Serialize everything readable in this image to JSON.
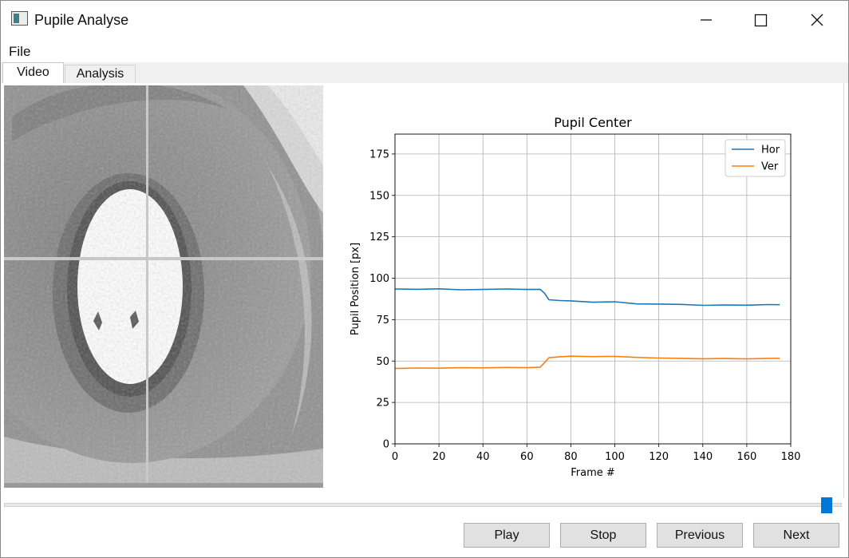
{
  "window": {
    "title": "Pupile Analyse"
  },
  "menu": {
    "file": "File"
  },
  "tabs": [
    {
      "label": "Video",
      "active": true
    },
    {
      "label": "Analysis",
      "active": false
    }
  ],
  "buttons": {
    "play": "Play",
    "stop": "Stop",
    "previous": "Previous",
    "next": "Next"
  },
  "slider": {
    "value_fraction": 0.99
  },
  "colors": {
    "accent": "#0078d7",
    "hor": "#1f77b4",
    "ver": "#ff7f0e"
  },
  "chart_data": {
    "type": "line",
    "title": "Pupil Center",
    "xlabel": "Frame #",
    "ylabel": "Pupil Position [px]",
    "xlim": [
      0,
      180
    ],
    "ylim": [
      0,
      187
    ],
    "xticks": [
      0,
      20,
      40,
      60,
      80,
      100,
      120,
      140,
      160,
      180
    ],
    "yticks": [
      0,
      25,
      50,
      75,
      100,
      125,
      150,
      175
    ],
    "grid": true,
    "legend": "top-right",
    "series": [
      {
        "name": "Hor",
        "x": [
          0,
          10,
          20,
          30,
          40,
          50,
          60,
          66,
          68,
          70,
          75,
          80,
          90,
          100,
          110,
          120,
          130,
          140,
          150,
          160,
          170,
          175
        ],
        "values": [
          93.5,
          93.3,
          93.6,
          93,
          93.2,
          93.5,
          93.2,
          93.3,
          91,
          87,
          86.5,
          86.3,
          85.5,
          85.8,
          84.5,
          84.4,
          84.2,
          83.6,
          83.8,
          83.7,
          84.1,
          84
        ]
      },
      {
        "name": "Ver",
        "x": [
          0,
          10,
          20,
          30,
          40,
          50,
          60,
          66,
          68,
          70,
          75,
          80,
          90,
          100,
          110,
          120,
          130,
          140,
          150,
          160,
          170,
          175
        ],
        "values": [
          45.5,
          45.8,
          45.7,
          46,
          45.9,
          46.1,
          46,
          46.2,
          49,
          52,
          52.6,
          52.9,
          52.7,
          52.8,
          52.2,
          51.8,
          51.6,
          51.4,
          51.5,
          51.3,
          51.6,
          51.6
        ]
      }
    ]
  }
}
